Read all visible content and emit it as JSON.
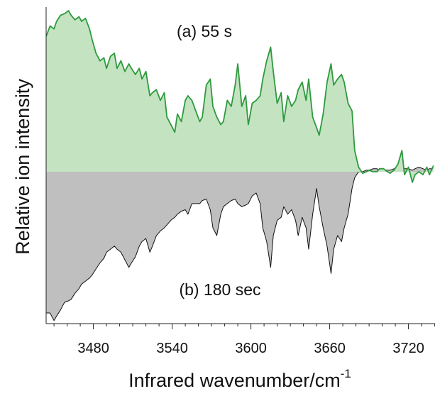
{
  "chart_data": {
    "type": "area",
    "y_label": "Relative ion intensity",
    "x_label": "Infrared wavenumber/cm",
    "x_label_superscript": "-1",
    "annotations": [
      "(a) 55 s",
      "(b) 180 sec"
    ],
    "x": [
      3444,
      3447,
      3450,
      3452,
      3455,
      3458,
      3461,
      3463,
      3466,
      3469,
      3471,
      3474,
      3477,
      3479,
      3482,
      3485,
      3488,
      3490,
      3493,
      3496,
      3498,
      3501,
      3504,
      3507,
      3509,
      3512,
      3515,
      3517,
      3520,
      3523,
      3525,
      3528,
      3531,
      3534,
      3536,
      3539,
      3542,
      3544,
      3547,
      3550,
      3552,
      3555,
      3558,
      3561,
      3563,
      3566,
      3569,
      3571,
      3574,
      3577,
      3579,
      3582,
      3585,
      3588,
      3590,
      3593,
      3596,
      3598,
      3601,
      3604,
      3607,
      3609,
      3612,
      3615,
      3617,
      3620,
      3623,
      3625,
      3628,
      3631,
      3634,
      3636,
      3639,
      3642,
      3644,
      3647,
      3650,
      3652,
      3655,
      3658,
      3661,
      3663,
      3666,
      3669,
      3671,
      3674,
      3677,
      3679,
      3682,
      3685,
      3688,
      3690,
      3693,
      3696,
      3698,
      3701,
      3704,
      3706,
      3709,
      3712,
      3715,
      3717,
      3720,
      3723,
      3725,
      3728,
      3731,
      3734,
      3736,
      3739
    ],
    "series": [
      {
        "color": "#2e9a3e",
        "fill": "#c3e3c1",
        "values": [
          0.89,
          0.96,
          0.94,
          0.99,
          1.03,
          1.04,
          1.06,
          1.03,
          1.0,
          1.02,
          0.99,
          1.01,
          0.94,
          0.87,
          0.78,
          0.73,
          0.75,
          0.68,
          0.76,
          0.78,
          0.68,
          0.73,
          0.66,
          0.71,
          0.68,
          0.64,
          0.68,
          0.61,
          0.66,
          0.5,
          0.52,
          0.54,
          0.47,
          0.52,
          0.36,
          0.31,
          0.26,
          0.38,
          0.33,
          0.47,
          0.5,
          0.47,
          0.4,
          0.33,
          0.36,
          0.57,
          0.61,
          0.43,
          0.36,
          0.31,
          0.33,
          0.47,
          0.43,
          0.57,
          0.71,
          0.43,
          0.5,
          0.31,
          0.45,
          0.47,
          0.5,
          0.61,
          0.73,
          0.82,
          0.66,
          0.45,
          0.52,
          0.33,
          0.5,
          0.43,
          0.47,
          0.54,
          0.59,
          0.47,
          0.61,
          0.36,
          0.29,
          0.24,
          0.38,
          0.59,
          0.71,
          0.57,
          0.61,
          0.64,
          0.59,
          0.45,
          0.4,
          0.14,
          0.03,
          -0.01,
          0,
          0.01,
          0,
          0,
          0.02,
          0.02,
          0,
          -0.01,
          0.01,
          0.05,
          0.14,
          -0.02,
          0.03,
          -0.07,
          -0.02,
          0,
          -0.02,
          0.03,
          -0.02,
          0.04
        ]
      },
      {
        "color": "#111111",
        "fill": "#c0bfc0",
        "values": [
          -0.93,
          -0.93,
          -0.98,
          -0.95,
          -0.91,
          -0.86,
          -0.85,
          -0.84,
          -0.8,
          -0.77,
          -0.74,
          -0.72,
          -0.7,
          -0.68,
          -0.64,
          -0.6,
          -0.57,
          -0.53,
          -0.51,
          -0.49,
          -0.51,
          -0.53,
          -0.58,
          -0.63,
          -0.6,
          -0.56,
          -0.49,
          -0.46,
          -0.44,
          -0.53,
          -0.49,
          -0.42,
          -0.39,
          -0.37,
          -0.35,
          -0.32,
          -0.3,
          -0.28,
          -0.26,
          -0.25,
          -0.28,
          -0.21,
          -0.21,
          -0.21,
          -0.19,
          -0.18,
          -0.25,
          -0.37,
          -0.42,
          -0.28,
          -0.23,
          -0.21,
          -0.19,
          -0.18,
          -0.21,
          -0.23,
          -0.22,
          -0.21,
          -0.16,
          -0.14,
          -0.21,
          -0.37,
          -0.46,
          -0.63,
          -0.42,
          -0.32,
          -0.3,
          -0.23,
          -0.28,
          -0.25,
          -0.32,
          -0.42,
          -0.3,
          -0.37,
          -0.51,
          -0.28,
          -0.11,
          -0.23,
          -0.37,
          -0.49,
          -0.67,
          -0.51,
          -0.42,
          -0.46,
          -0.37,
          -0.28,
          -0.11,
          -0.04,
          0,
          0,
          0.01,
          0.01,
          0.02,
          0.02,
          0.01,
          0.01,
          0.01,
          0.01,
          0.02,
          0.01,
          0.02,
          0.02,
          0.02,
          0.01,
          0.02,
          0.03,
          0.02,
          0.01,
          0.02,
          0.02
        ]
      }
    ],
    "xlim": [
      3444,
      3740
    ],
    "ylim": [
      -1,
      1.1
    ],
    "xticks": [
      3480,
      3540,
      3600,
      3660,
      3720
    ],
    "xminorticks": [
      3450,
      3460,
      3470,
      3490,
      3500,
      3510,
      3520,
      3530,
      3550,
      3560,
      3570,
      3580,
      3590,
      3610,
      3620,
      3630,
      3640,
      3650,
      3670,
      3680,
      3690,
      3700,
      3710,
      3730,
      3740
    ]
  }
}
